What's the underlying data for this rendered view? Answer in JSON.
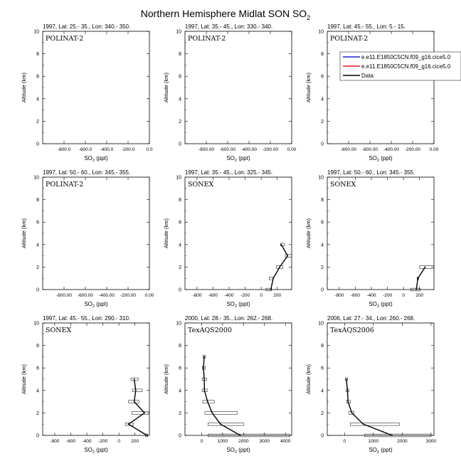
{
  "title_main": "Northern Hemisphere Midlat SON SO",
  "title_sub": "2",
  "y_label": "Altitude (km)",
  "x_label_main": "SO",
  "x_label_sub": "2",
  "x_label_unit": " (ppt)",
  "legend": {
    "entries": [
      {
        "label": "e.e11.E1850C5CN.f09_g16.cice5.0",
        "color": "#1f1fd6"
      },
      {
        "label": "e.e11.E1850C5CN.f09_g16.cice5.0",
        "color": "#e0201a"
      },
      {
        "label": "Data",
        "color": "#000000"
      }
    ]
  },
  "chart_data": [
    {
      "type": "line",
      "header": "1997, Lat: 25.- 35., Lon: 340.- 350.",
      "campaign": "POLINAT-2",
      "ylim": [
        0,
        10
      ],
      "xlim": [
        -1000,
        0
      ],
      "x_ticks": [
        -800,
        -600,
        -400,
        -200,
        0
      ],
      "x_tick_labels": [
        "-800.0",
        "-600.0",
        "-400.0",
        "-200.0",
        "0.0"
      ],
      "y_ticks": [
        0,
        2,
        4,
        6,
        8,
        10
      ],
      "y_tick_labels": [
        "0",
        "2",
        "4",
        "6",
        "8",
        "10"
      ],
      "data": []
    },
    {
      "type": "line",
      "header": "1997, Lat: 35.- 45., Lon: 330.- 340.",
      "campaign": "POLINAT-2",
      "ylim": [
        0,
        10
      ],
      "xlim": [
        -1000,
        0
      ],
      "x_ticks": [
        -800,
        -600,
        -400,
        -200,
        0
      ],
      "x_tick_labels": [
        "-800.00",
        "-600.00",
        "-400.00",
        "-200.00",
        "0.00"
      ],
      "y_ticks": [
        0,
        2,
        4,
        6,
        8,
        10
      ],
      "y_tick_labels": [
        "0",
        "2",
        "4",
        "6",
        "8",
        "10"
      ],
      "data": []
    },
    {
      "type": "line",
      "header": "1997, Lat: 45.- 55., Lon: 5.- 15.",
      "campaign": "POLINAT-2",
      "ylim": [
        0,
        10
      ],
      "xlim": [
        -1000,
        0
      ],
      "x_ticks": [
        -800,
        -600,
        -400,
        -200,
        0
      ],
      "x_tick_labels": [
        "-800.00",
        "-600.00",
        "-400.00",
        "-200.00",
        "0.00"
      ],
      "y_ticks": [
        0,
        2,
        4,
        6,
        8,
        10
      ],
      "y_tick_labels": [
        "0",
        "2",
        "4",
        "6",
        "8",
        "10"
      ],
      "data": []
    },
    {
      "type": "line",
      "header": "1997, Lat: 50.- 60., Lon: 345.- 355.",
      "campaign": "POLINAT-2",
      "ylim": [
        0,
        10
      ],
      "xlim": [
        -1000,
        0
      ],
      "x_ticks": [
        -800,
        -600,
        -400,
        -200,
        0
      ],
      "x_tick_labels": [
        "-800.00",
        "-600.00",
        "-400.00",
        "-200.00",
        "0.00"
      ],
      "y_ticks": [
        0,
        2,
        4,
        6,
        8,
        10
      ],
      "y_tick_labels": [
        "0",
        "2",
        "4",
        "6",
        "8",
        "10"
      ],
      "data": []
    },
    {
      "type": "line",
      "header": "1997, Lat: 35.- 45., Lon: 325.- 345.",
      "campaign": "SONEX",
      "ylim": [
        0,
        10
      ],
      "xlim": [
        -950,
        380
      ],
      "x_ticks": [
        -800,
        -600,
        -400,
        -200,
        0,
        200
      ],
      "x_tick_labels": [
        "-800",
        "-600",
        "-400",
        "-200",
        "0",
        "200"
      ],
      "y_ticks": [
        0,
        2,
        4,
        6,
        8,
        10
      ],
      "y_tick_labels": [
        "0",
        "2",
        "4",
        "6",
        "8",
        "10"
      ],
      "data": [
        {
          "alt": 0,
          "value": 120,
          "lo": 60,
          "hi": 130
        },
        {
          "alt": 1,
          "value": 150,
          "lo": 100,
          "hi": 150
        },
        {
          "alt": 2,
          "value": 230,
          "lo": 190,
          "hi": 270
        },
        {
          "alt": 3,
          "value": 330,
          "lo": 300,
          "hi": 380
        },
        {
          "alt": 4,
          "value": 250,
          "lo": 240,
          "hi": 290
        }
      ]
    },
    {
      "type": "line",
      "header": "1997, Lat: 50.- 60., Lon: 345.- 355.",
      "campaign": "SONEX",
      "ylim": [
        0,
        10
      ],
      "xlim": [
        -950,
        380
      ],
      "x_ticks": [
        -800,
        -600,
        -400,
        -200,
        0,
        200
      ],
      "x_tick_labels": [
        "-800",
        "-600",
        "-400",
        "-200",
        "0",
        "200"
      ],
      "y_ticks": [
        0,
        2,
        4,
        6,
        8,
        10
      ],
      "y_tick_labels": [
        "0",
        "2",
        "4",
        "6",
        "8",
        "10"
      ],
      "data": [
        {
          "alt": 0,
          "value": 160,
          "lo": 90,
          "hi": 210
        },
        {
          "alt": 1,
          "value": 180,
          "lo": 170,
          "hi": 190
        },
        {
          "alt": 2,
          "value": 270,
          "lo": 200,
          "hi": 380
        }
      ]
    },
    {
      "type": "line",
      "header": "1997, Lat: 45.- 55., Lon: 290.- 310.",
      "campaign": "SONEX",
      "ylim": [
        0,
        10
      ],
      "xlim": [
        -950,
        380
      ],
      "x_ticks": [
        -800,
        -600,
        -400,
        -200,
        0,
        200
      ],
      "x_tick_labels": [
        "-800",
        "-600",
        "-400",
        "-200",
        "0",
        "200"
      ],
      "y_ticks": [
        0,
        2,
        4,
        6,
        8,
        10
      ],
      "y_tick_labels": [
        "0",
        "2",
        "4",
        "6",
        "8",
        "10"
      ],
      "data": [
        {
          "alt": 0,
          "value": 350,
          "lo": 330,
          "hi": 360
        },
        {
          "alt": 1,
          "value": 120,
          "lo": 80,
          "hi": 180
        },
        {
          "alt": 2,
          "value": 320,
          "lo": 160,
          "hi": 380
        },
        {
          "alt": 3,
          "value": 190,
          "lo": 120,
          "hi": 250
        },
        {
          "alt": 4,
          "value": 210,
          "lo": 170,
          "hi": 290
        },
        {
          "alt": 5,
          "value": 190,
          "lo": 150,
          "hi": 240
        }
      ]
    },
    {
      "type": "line",
      "header": "2000, Lat: 28.- 35., Lon: 262.- 268.",
      "campaign": "TexAQS2000",
      "ylim": [
        0,
        10
      ],
      "xlim": [
        -800,
        4300
      ],
      "x_ticks": [
        0,
        1000,
        2000,
        3000,
        4000
      ],
      "x_tick_labels": [
        "0",
        "1000",
        "2000",
        "3000",
        "4000"
      ],
      "y_ticks": [
        0,
        2,
        4,
        6,
        8,
        10
      ],
      "y_tick_labels": [
        "0",
        "2",
        "4",
        "6",
        "8",
        "10"
      ],
      "data": [
        {
          "alt": 0,
          "value": 1850,
          "lo": 300,
          "hi": 4200
        },
        {
          "alt": 1,
          "value": 900,
          "lo": 300,
          "hi": 2000
        },
        {
          "alt": 2,
          "value": 500,
          "lo": 150,
          "hi": 1700
        },
        {
          "alt": 3,
          "value": 280,
          "lo": 50,
          "hi": 600
        },
        {
          "alt": 4,
          "value": 130,
          "lo": 20,
          "hi": 260
        },
        {
          "alt": 5,
          "value": 120,
          "lo": 20,
          "hi": 230
        },
        {
          "alt": 6,
          "value": 80,
          "lo": 30,
          "hi": 180
        },
        {
          "alt": 7,
          "value": 120,
          "lo": 60,
          "hi": 180
        }
      ]
    },
    {
      "type": "line",
      "header": "2006, Lat: 27.- 34., Lon: 260.- 268.",
      "campaign": "TexAQS2006",
      "ylim": [
        0,
        10
      ],
      "xlim": [
        -600,
        3100
      ],
      "x_ticks": [
        0,
        1000,
        2000,
        3000
      ],
      "x_tick_labels": [
        "0",
        "1000",
        "2000",
        "3000"
      ],
      "y_ticks": [
        0,
        2,
        4,
        6,
        8,
        10
      ],
      "y_tick_labels": [
        "0",
        "2",
        "4",
        "6",
        "8",
        "10"
      ],
      "data": [
        {
          "alt": 0,
          "value": 1650,
          "lo": 700,
          "hi": 3000
        },
        {
          "alt": 1,
          "value": 650,
          "lo": 200,
          "hi": 1900
        },
        {
          "alt": 2,
          "value": 250,
          "lo": 150,
          "hi": 330
        },
        {
          "alt": 3,
          "value": 120,
          "lo": 70,
          "hi": 200
        },
        {
          "alt": 4,
          "value": 100,
          "lo": 60,
          "hi": 150
        },
        {
          "alt": 5,
          "value": 60,
          "lo": 30,
          "hi": 110
        }
      ]
    }
  ]
}
